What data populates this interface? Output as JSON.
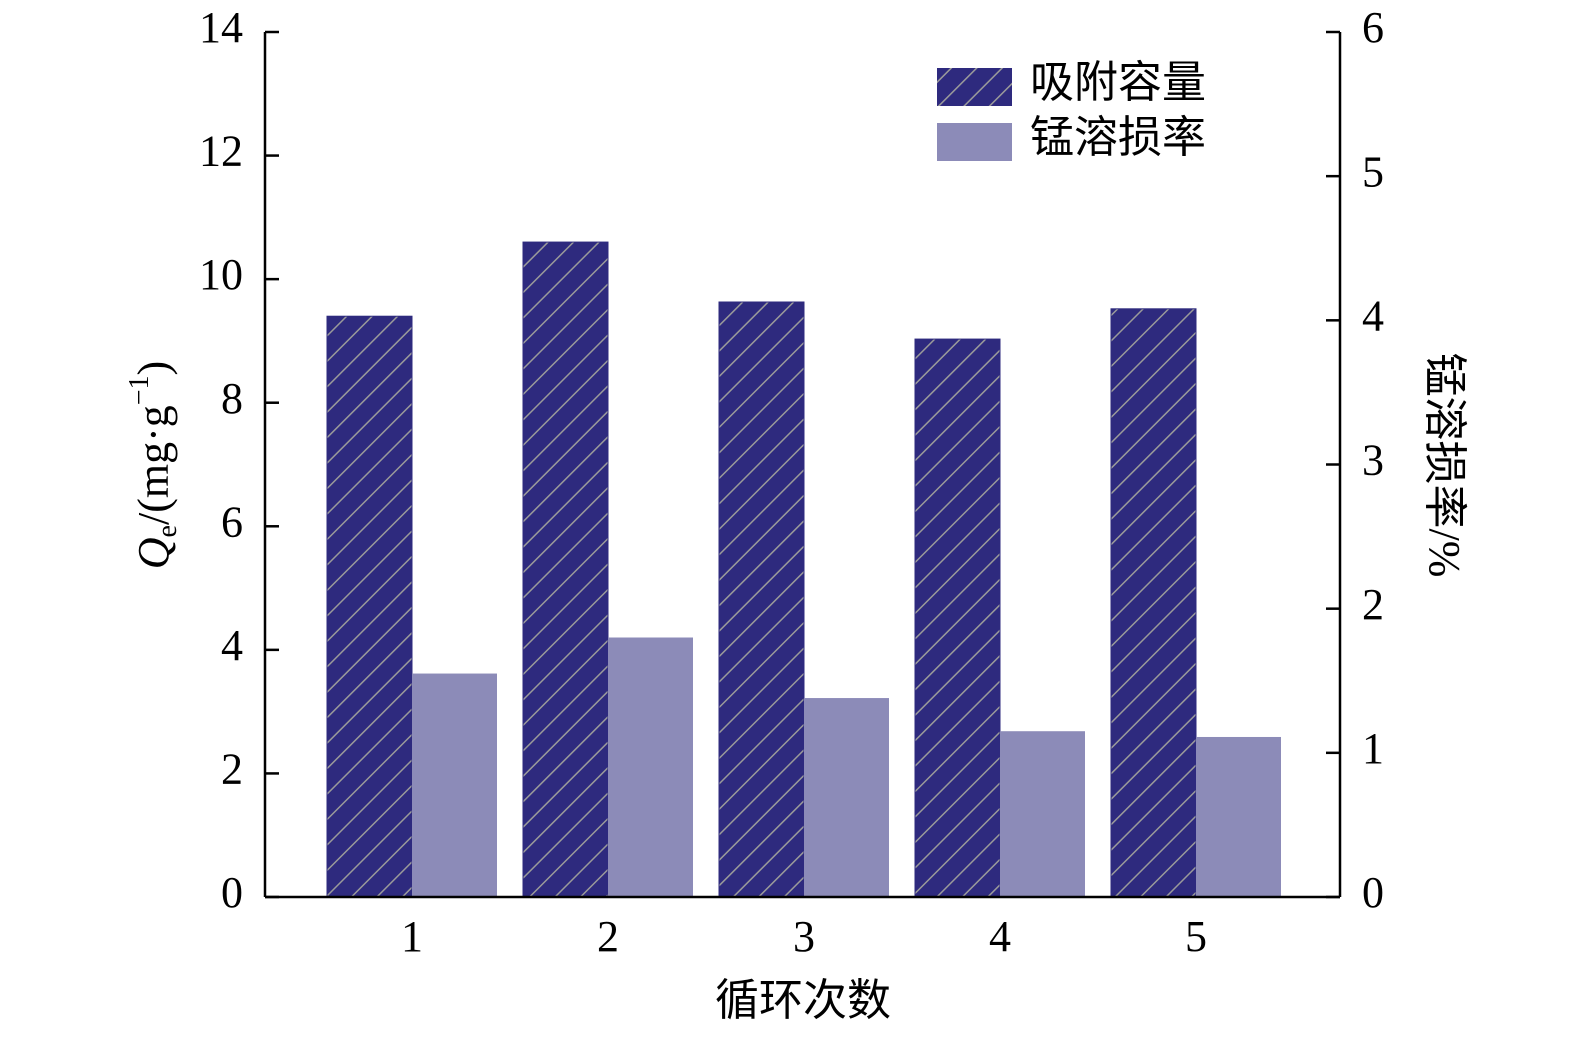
{
  "chart_data": {
    "type": "bar",
    "categories": [
      "1",
      "2",
      "3",
      "4",
      "5"
    ],
    "xlabel": "循环次数",
    "ylabel": [
      "Q",
      "e",
      "/(mg·g",
      "−1",
      ")"
    ],
    "y2label": "锰溶损率/%",
    "series": [
      {
        "name": "吸附容量",
        "color": "#2e2a7e",
        "hatch": true,
        "values": [
          9.4,
          10.6,
          9.63,
          9.03,
          9.52
        ]
      },
      {
        "name": "锰溶损率",
        "color": "#8c8bb8",
        "axis": "y2",
        "values": [
          1.55,
          1.8,
          1.38,
          1.15,
          1.11
        ]
      }
    ],
    "ylim": [
      0,
      14
    ],
    "yticks": [
      0,
      2,
      4,
      6,
      8,
      10,
      12,
      14
    ],
    "y2lim": [
      0,
      6
    ],
    "y2ticks": [
      0,
      1,
      2,
      3,
      4,
      5,
      6
    ],
    "legend": "upper right"
  }
}
